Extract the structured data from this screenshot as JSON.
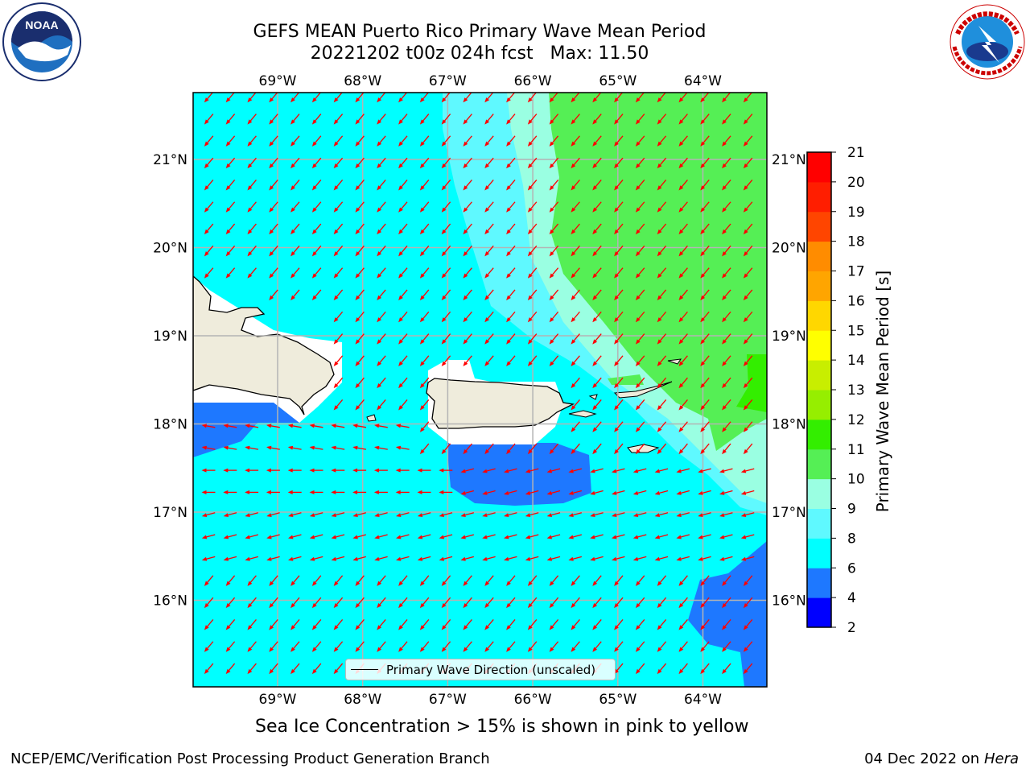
{
  "header": {
    "title_line1": "GEFS MEAN Puerto Rico Primary Wave Mean Period",
    "title_line2": "20221202 t00z 024h fcst   Max: 11.50"
  },
  "logos": {
    "left": "noaa-logo",
    "right": "nws-logo"
  },
  "map": {
    "lon_labels": [
      "69°W",
      "68°W",
      "67°W",
      "66°W",
      "65°W",
      "64°W"
    ],
    "lat_labels": [
      "21°N",
      "20°N",
      "19°N",
      "18°N",
      "17°N",
      "16°N"
    ],
    "vector_color": "#ff0000",
    "grid_color": "#b4b4b4",
    "land_color": "#efecdc"
  },
  "colorbar": {
    "title": "Primary Wave Mean Period [s]",
    "ticks": [
      "2",
      "4",
      "6",
      "8",
      "9",
      "10",
      "11",
      "12",
      "13",
      "14",
      "15",
      "16",
      "17",
      "18",
      "19",
      "20",
      "21"
    ],
    "colors": [
      "#0000ff",
      "#1e78ff",
      "#00ffff",
      "#5ff9ff",
      "#9affe2",
      "#55ef55",
      "#33ee00",
      "#96ee00",
      "#c8ee00",
      "#ffff00",
      "#ffd700",
      "#ffa500",
      "#ff8c00",
      "#ff4500",
      "#ff1e00",
      "#ff0000"
    ]
  },
  "legend": {
    "label": "Primary Wave Direction (unscaled)"
  },
  "footer": {
    "note": "Sea Ice Concentration > 15% is shown in pink to yellow",
    "credit": "NCEP/EMC/Verification Post Processing Product Generation Branch",
    "date": "04 Dec 2022 on",
    "host": "Hera"
  }
}
